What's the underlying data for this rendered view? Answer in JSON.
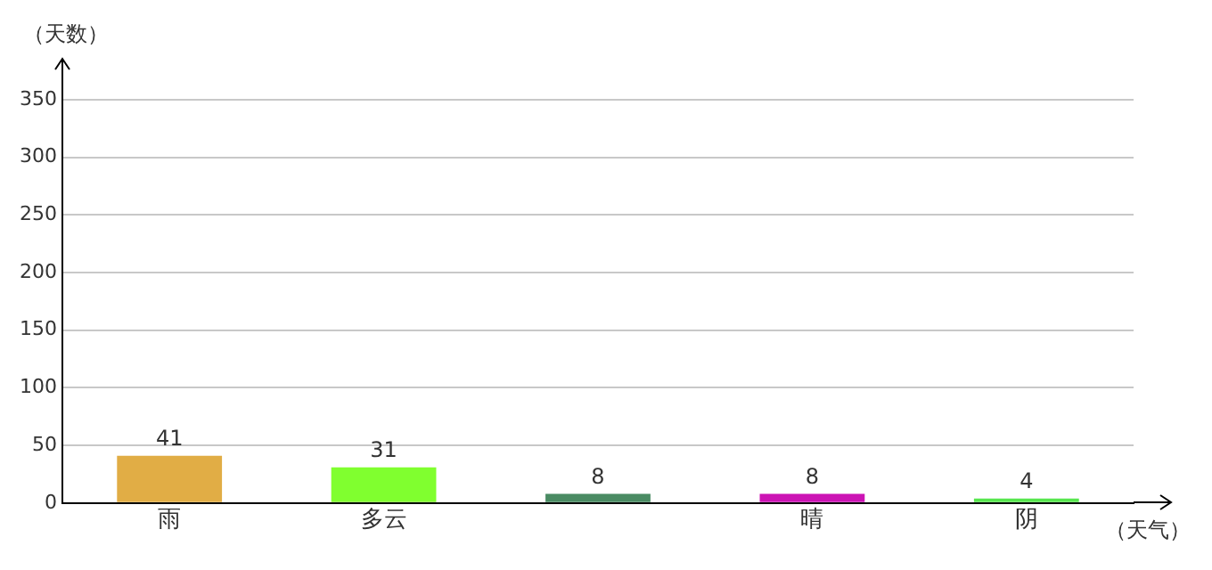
{
  "chart_data": {
    "type": "bar",
    "ylabel": "（天数）",
    "xlabel": "（天气）",
    "categories": [
      "雨",
      "多云",
      null,
      "晴",
      "阴"
    ],
    "values": [
      41,
      31,
      8,
      8,
      4
    ],
    "colors": [
      "#e1ad45",
      "#80ff2f",
      "#4a8b63",
      "#cc14b4",
      "#58e64f"
    ],
    "ylim": [
      0,
      350
    ],
    "yticks": [
      0,
      50,
      100,
      150,
      200,
      250,
      300,
      350
    ],
    "grid": "y",
    "data_labels": true,
    "legend": false
  }
}
